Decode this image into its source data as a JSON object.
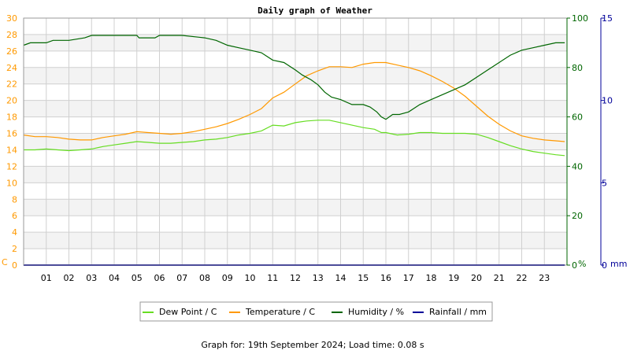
{
  "chart_data": {
    "type": "line",
    "title": "Daily graph of Weather",
    "footer": "Graph for: 19th September 2024; Load time: 0.08 s",
    "x_ticks": [
      "01",
      "02",
      "03",
      "04",
      "05",
      "06",
      "07",
      "08",
      "09",
      "10",
      "11",
      "12",
      "13",
      "14",
      "15",
      "16",
      "17",
      "18",
      "19",
      "20",
      "21",
      "22",
      "23"
    ],
    "x_range_hours": [
      0,
      24
    ],
    "axes": {
      "temp": {
        "unit_label": "C",
        "range": [
          0,
          30
        ],
        "ticks": [
          0,
          2,
          4,
          6,
          8,
          10,
          12,
          14,
          16,
          18,
          20,
          22,
          24,
          26,
          28,
          30
        ],
        "color": "#ff9900"
      },
      "humidity": {
        "unit_label": "%",
        "range": [
          0,
          100
        ],
        "ticks": [
          0,
          20,
          40,
          60,
          80,
          100
        ],
        "color": "#006600"
      },
      "rain": {
        "unit_label": "mm",
        "range": [
          0,
          15
        ],
        "ticks": [
          0,
          5,
          10,
          15
        ],
        "color": "#000099"
      }
    },
    "series": [
      {
        "name": "Dew Point / C",
        "axis": "temp",
        "color": "#66dd22",
        "x": [
          0,
          0.5,
          1,
          1.5,
          2,
          2.5,
          3,
          3.5,
          4,
          4.5,
          5,
          5.5,
          6,
          6.5,
          7,
          7.5,
          8,
          8.5,
          9,
          9.5,
          10,
          10.5,
          11,
          11.5,
          12,
          12.5,
          13,
          13.5,
          14,
          14.5,
          15,
          15.5,
          15.8,
          16,
          16.5,
          17,
          17.5,
          18,
          18.5,
          19,
          19.5,
          20,
          20.5,
          21,
          21.5,
          22,
          22.5,
          23,
          23.5,
          23.9
        ],
        "values": [
          14.0,
          14.0,
          14.1,
          14.0,
          13.9,
          14.0,
          14.1,
          14.4,
          14.6,
          14.8,
          15.0,
          14.9,
          14.8,
          14.8,
          14.9,
          15.0,
          15.2,
          15.3,
          15.5,
          15.8,
          16.0,
          16.3,
          17.0,
          16.9,
          17.3,
          17.5,
          17.6,
          17.6,
          17.3,
          17.0,
          16.7,
          16.5,
          16.1,
          16.1,
          15.8,
          15.9,
          16.1,
          16.1,
          16.0,
          16.0,
          16.0,
          15.9,
          15.5,
          15.0,
          14.5,
          14.1,
          13.8,
          13.6,
          13.4,
          13.3
        ]
      },
      {
        "name": "Temperature / C",
        "axis": "temp",
        "color": "#ff9900",
        "x": [
          0,
          0.5,
          1,
          1.5,
          2,
          2.5,
          3,
          3.5,
          4,
          4.5,
          5,
          5.5,
          6,
          6.5,
          7,
          7.5,
          8,
          8.5,
          9,
          9.5,
          10,
          10.5,
          11,
          11.5,
          12,
          12.5,
          13,
          13.5,
          14,
          14.5,
          15,
          15.5,
          16,
          16.5,
          17,
          17.5,
          18,
          18.5,
          19,
          19.5,
          20,
          20.5,
          21,
          21.5,
          22,
          22.5,
          23,
          23.5,
          23.9
        ],
        "values": [
          15.8,
          15.6,
          15.6,
          15.5,
          15.3,
          15.2,
          15.2,
          15.5,
          15.7,
          15.9,
          16.2,
          16.1,
          16.0,
          15.9,
          16.0,
          16.2,
          16.5,
          16.8,
          17.2,
          17.7,
          18.3,
          19.0,
          20.3,
          21.0,
          22.0,
          23.0,
          23.6,
          24.1,
          24.1,
          24.0,
          24.4,
          24.6,
          24.6,
          24.3,
          24.0,
          23.6,
          23.0,
          22.3,
          21.5,
          20.5,
          19.3,
          18.1,
          17.1,
          16.3,
          15.7,
          15.4,
          15.2,
          15.1,
          15.0
        ]
      },
      {
        "name": "Humidity / %",
        "axis": "humidity",
        "color": "#006600",
        "x": [
          0,
          0.3,
          1,
          1.3,
          2,
          2.7,
          3,
          4,
          5,
          5.1,
          5.8,
          6,
          7,
          8,
          8.5,
          9,
          9.5,
          10,
          10.5,
          11,
          11.5,
          12,
          12.3,
          12.7,
          13,
          13.3,
          13.6,
          14,
          14.5,
          15,
          15.3,
          15.6,
          15.8,
          16,
          16.3,
          16.6,
          17,
          17.5,
          18,
          18.5,
          19,
          19.5,
          20,
          20.5,
          21,
          21.5,
          22,
          22.5,
          23,
          23.5,
          23.9
        ],
        "values": [
          89,
          90,
          90,
          91,
          91,
          92,
          93,
          93,
          93,
          92,
          92,
          93,
          93,
          92,
          91,
          89,
          88,
          87,
          86,
          83,
          82,
          79,
          77,
          75,
          73,
          70,
          68,
          67,
          65,
          65,
          64,
          62,
          60,
          59,
          61,
          61,
          62,
          65,
          67,
          69,
          71,
          73,
          76,
          79,
          82,
          85,
          87,
          88,
          89,
          90,
          90
        ]
      },
      {
        "name": "Rainfall / mm",
        "axis": "rain",
        "color": "#000099",
        "x": [
          0,
          23.9
        ],
        "values": [
          0,
          0
        ]
      }
    ],
    "legend": {
      "placement": "bottom-center",
      "items": [
        "Dew Point / C",
        "Temperature / C",
        "Humidity / %",
        "Rainfall / mm"
      ],
      "colors": [
        "#66dd22",
        "#ff9900",
        "#006600",
        "#000099"
      ]
    },
    "grid": true
  }
}
